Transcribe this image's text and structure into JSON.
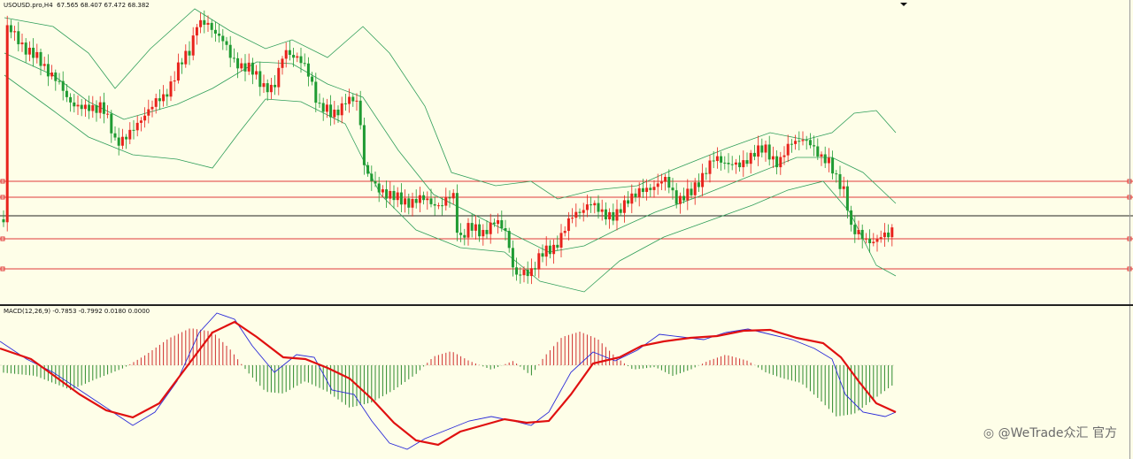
{
  "main_chart": {
    "symbol_label": "USOUSD.pro,H4",
    "ohlc": "67.565 68.407 67.472 68.382",
    "colors": {
      "bull": "#e8231c",
      "bear": "#1f9b32",
      "band": "#2f9e5a",
      "level": "#e03a3a",
      "price": "#222222",
      "bg": "#fefee8"
    }
  },
  "macd": {
    "label": "MACD(12,26,9)",
    "values": "-0.7853 -0.7992 0.0180 0.0000",
    "colors": {
      "macd": "#2a2ad8",
      "signal": "#e01010",
      "hist_pos": "#d03030",
      "hist_neg": "#2e8b2e"
    }
  },
  "watermark": {
    "text": "@WeTrade众汇 官方"
  },
  "icons": {
    "dropdown": "triangle-down-icon",
    "watermark_logo": "shutter-icon"
  }
}
